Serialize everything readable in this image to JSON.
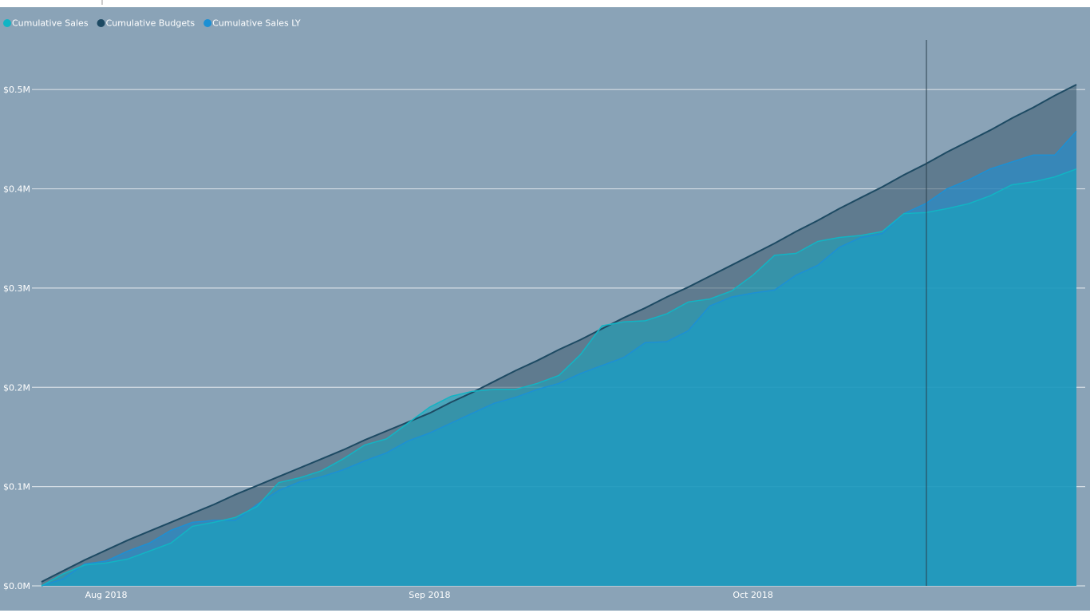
{
  "chart_data": {
    "type": "area",
    "categories": [
      null,
      null,
      null,
      "Aug 2018",
      null,
      null,
      null,
      null,
      null,
      null,
      null,
      null,
      null,
      null,
      null,
      null,
      null,
      null,
      "Sep 2018",
      null,
      null,
      null,
      null,
      null,
      null,
      null,
      null,
      null,
      null,
      null,
      null,
      null,
      null,
      "Oct 2018",
      null,
      null,
      null,
      null,
      null,
      null,
      null,
      null,
      null,
      null,
      null,
      null,
      null,
      null,
      null
    ],
    "series": [
      {
        "name": "Cumulative Sales",
        "color": "#12b4c4",
        "values": [
          0,
          12000,
          21000,
          23000,
          27000,
          35000,
          43000,
          60000,
          64000,
          69000,
          80000,
          104000,
          109000,
          116000,
          128000,
          142000,
          148000,
          164000,
          180000,
          191000,
          196000,
          198000,
          198000,
          204000,
          212000,
          233000,
          262000,
          266000,
          267000,
          274000,
          286000,
          289000,
          297000,
          313000,
          333000,
          335000,
          347000,
          351000,
          353000,
          357000,
          375000,
          376000,
          380000,
          385000,
          393000,
          404000,
          407000,
          412000,
          420000
        ]
      },
      {
        "name": "Cumulative Budgets",
        "color": "#1d4a63",
        "values": [
          4000,
          15000,
          26000,
          36000,
          46000,
          55000,
          64000,
          73000,
          82000,
          92000,
          101000,
          110000,
          119000,
          128000,
          137000,
          147000,
          156000,
          165000,
          174000,
          185000,
          195000,
          206000,
          217000,
          227000,
          238000,
          248000,
          259000,
          270000,
          280000,
          291000,
          301000,
          312000,
          323000,
          334000,
          345000,
          357000,
          368000,
          380000,
          391000,
          402000,
          414000,
          425000,
          437000,
          448000,
          459000,
          471000,
          482000,
          494000,
          505000
        ]
      },
      {
        "name": "Cumulative Sales LY",
        "color": "#1c90d4",
        "values": [
          0,
          7000,
          22000,
          25000,
          35000,
          43000,
          56000,
          64000,
          66000,
          66000,
          82000,
          96000,
          105000,
          110000,
          117000,
          126000,
          134000,
          146000,
          154000,
          164000,
          174000,
          184000,
          190000,
          198000,
          204000,
          214000,
          222000,
          230000,
          245000,
          246000,
          257000,
          282000,
          291000,
          295000,
          298000,
          313000,
          323000,
          341000,
          351000,
          355000,
          375000,
          385000,
          400000,
          409000,
          420000,
          427000,
          434000,
          434000,
          458000
        ]
      }
    ],
    "ylim": [
      0,
      550000
    ],
    "yticks": [
      {
        "value": 0,
        "label": "$0.0M"
      },
      {
        "value": 100000,
        "label": "$0.1M"
      },
      {
        "value": 200000,
        "label": "$0.2M"
      },
      {
        "value": 300000,
        "label": "$0.3M"
      },
      {
        "value": 400000,
        "label": "$0.4M"
      },
      {
        "value": 500000,
        "label": "$0.5M"
      }
    ],
    "grid": true
  }
}
